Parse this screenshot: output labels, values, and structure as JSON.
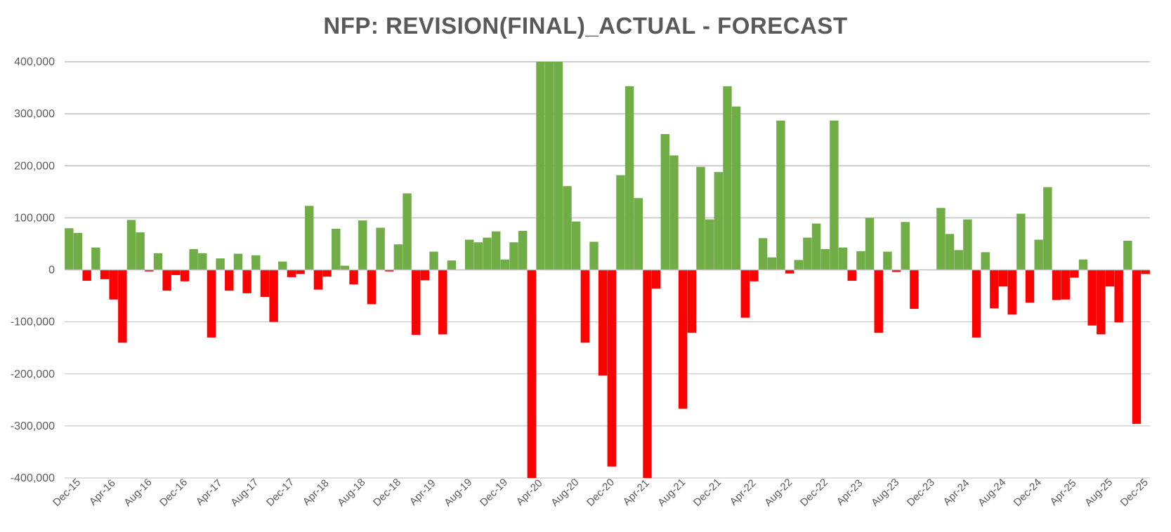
{
  "chart_data": {
    "type": "bar",
    "title": "NFP: REVISION(FINAL)_ACTUAL - FORECAST",
    "xlabel": "",
    "ylabel": "",
    "ylim": [
      -400000,
      400000
    ],
    "y_ticks": [
      400000,
      300000,
      200000,
      100000,
      0,
      -100000,
      -200000,
      -300000,
      -400000
    ],
    "y_tick_labels": [
      "400,000",
      "300,000",
      "200,000",
      "100,000",
      "0",
      "-100,000",
      "-200,000",
      "-300,000",
      "-400,000"
    ],
    "x_tick_labels": [
      "Dec-15",
      "Apr-16",
      "Aug-16",
      "Dec-16",
      "Apr-17",
      "Aug-17",
      "Dec-17",
      "Apr-18",
      "Aug-18",
      "Dec-18",
      "Apr-19",
      "Aug-19",
      "Dec-19",
      "Apr-20",
      "Aug-20",
      "Dec-20",
      "Apr-21",
      "Aug-21",
      "Dec-21",
      "Apr-22",
      "Aug-22",
      "Dec-22",
      "Apr-23",
      "Aug-23",
      "Dec-23",
      "Apr-24",
      "Aug-24",
      "Dec-24",
      "Apr-25",
      "Aug-25",
      "Dec-25"
    ],
    "start_month": "Dec-15",
    "grid": true,
    "legend": "none",
    "colors": {
      "positive": "#70AD47",
      "negative": "#FF0000",
      "grid": "#BFBFBF",
      "text": "#595959"
    },
    "values": [
      80000,
      71000,
      -21000,
      43000,
      -18000,
      -57000,
      -140000,
      96000,
      72000,
      -3000,
      32000,
      -40000,
      -10000,
      -22000,
      40000,
      32000,
      -130000,
      22000,
      -40000,
      31000,
      -45000,
      28000,
      -52000,
      -100000,
      16000,
      -14000,
      -8000,
      123000,
      -38000,
      -13000,
      79000,
      8000,
      -28000,
      95000,
      -66000,
      81000,
      -3000,
      49000,
      147000,
      -125000,
      -20000,
      35000,
      -124000,
      18000,
      0,
      58000,
      53000,
      62000,
      74000,
      20000,
      53000,
      75000,
      -400000,
      400000,
      400000,
      400000,
      161000,
      93000,
      -140000,
      54000,
      -203000,
      -378000,
      182000,
      353000,
      138000,
      -400000,
      -36000,
      261000,
      220000,
      -267000,
      -121000,
      198000,
      97000,
      188000,
      353000,
      314000,
      -92000,
      -22000,
      61000,
      24000,
      287000,
      -7000,
      19000,
      62000,
      89000,
      40000,
      287000,
      43000,
      -21000,
      36000,
      100000,
      -121000,
      35000,
      -4000,
      92000,
      -75000,
      0,
      0,
      119000,
      69000,
      38000,
      97000,
      -130000,
      34000,
      -74000,
      -32000,
      -86000,
      108000,
      -63000,
      58000,
      159000,
      -58000,
      -57000,
      -15000,
      20000,
      -107000,
      -124000,
      -32000,
      -101000,
      56000,
      -296000,
      -8000
    ]
  }
}
